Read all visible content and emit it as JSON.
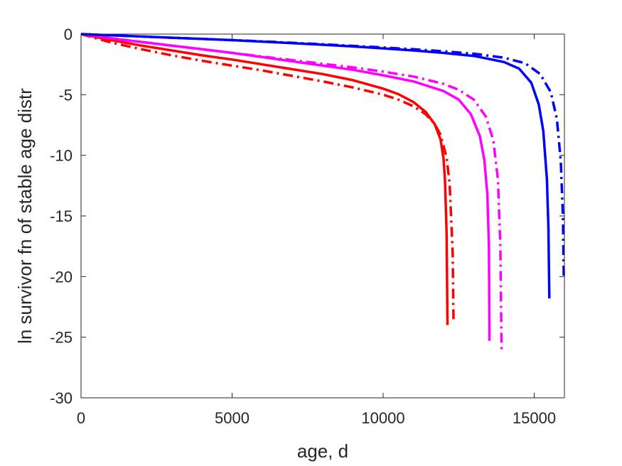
{
  "chart_data": {
    "type": "line",
    "title": "",
    "xlabel": "age, d",
    "ylabel": "ln survivor fn of stable age distr",
    "xlim": [
      0,
      16000
    ],
    "ylim": [
      -30,
      0
    ],
    "xticks": [
      0,
      5000,
      10000,
      15000
    ],
    "yticks": [
      0,
      -5,
      -10,
      -15,
      -20,
      -25,
      -30
    ],
    "xtick_labels": [
      "0",
      "5000",
      "10000",
      "15000"
    ],
    "ytick_labels": [
      "0",
      "-5",
      "-10",
      "-15",
      "-20",
      "-25",
      "-30"
    ],
    "grid": false,
    "box": true,
    "series": [
      {
        "color": "#ff0000",
        "style": "solid",
        "x": [
          0,
          1000,
          2000,
          3000,
          4000,
          5000,
          6000,
          7000,
          8000,
          9000,
          10000,
          10500,
          11000,
          11400,
          11700,
          11900,
          12000,
          12050,
          12100,
          12130
        ],
        "y": [
          0,
          -0.5,
          -0.95,
          -1.35,
          -1.75,
          -2.1,
          -2.5,
          -2.9,
          -3.3,
          -3.8,
          -4.5,
          -4.95,
          -5.6,
          -6.4,
          -7.4,
          -8.7,
          -10.3,
          -12.2,
          -16.5,
          -24
        ]
      },
      {
        "color": "#ff0000",
        "style": "dashdot",
        "x": [
          0,
          1000,
          2000,
          3000,
          4000,
          5000,
          6000,
          7000,
          8000,
          9000,
          10000,
          10500,
          11000,
          11400,
          11700,
          11900,
          12100,
          12200,
          12300,
          12330
        ],
        "y": [
          0,
          -0.7,
          -1.25,
          -1.75,
          -2.2,
          -2.6,
          -3.0,
          -3.45,
          -3.9,
          -4.4,
          -5.0,
          -5.4,
          -5.95,
          -6.6,
          -7.4,
          -8.3,
          -10.2,
          -12.3,
          -18.0,
          -23.7
        ]
      },
      {
        "color": "#ff00ff",
        "style": "solid",
        "x": [
          0,
          1000,
          2000,
          3000,
          4000,
          5000,
          6000,
          7000,
          8000,
          9000,
          10000,
          11000,
          12000,
          12500,
          12900,
          13200,
          13350,
          13450,
          13500,
          13520
        ],
        "y": [
          0,
          -0.35,
          -0.65,
          -0.95,
          -1.25,
          -1.55,
          -1.9,
          -2.25,
          -2.6,
          -2.95,
          -3.4,
          -3.9,
          -4.7,
          -5.4,
          -6.6,
          -8.4,
          -10.4,
          -13.2,
          -17.5,
          -25.3
        ]
      },
      {
        "color": "#ff00ff",
        "style": "dashdot",
        "x": [
          0,
          1000,
          2000,
          3000,
          4000,
          5000,
          6000,
          7000,
          8000,
          9000,
          10000,
          11000,
          12000,
          12500,
          13000,
          13400,
          13650,
          13800,
          13880,
          13920
        ],
        "y": [
          0,
          -0.35,
          -0.65,
          -0.95,
          -1.25,
          -1.55,
          -1.85,
          -2.15,
          -2.45,
          -2.75,
          -3.1,
          -3.5,
          -4.1,
          -4.6,
          -5.4,
          -6.8,
          -8.8,
          -12.0,
          -17.5,
          -26.2
        ]
      },
      {
        "color": "#0000ff",
        "style": "solid",
        "x": [
          0,
          1000,
          2000,
          3000,
          4000,
          5000,
          6000,
          7000,
          8000,
          9000,
          10000,
          11000,
          12000,
          13000,
          14000,
          14500,
          14900,
          15150,
          15300,
          15420,
          15470,
          15500
        ],
        "y": [
          0,
          -0.1,
          -0.2,
          -0.3,
          -0.4,
          -0.5,
          -0.62,
          -0.75,
          -0.88,
          -1.02,
          -1.18,
          -1.35,
          -1.55,
          -1.8,
          -2.3,
          -2.85,
          -4.0,
          -5.8,
          -8.0,
          -12.0,
          -16.0,
          -21.8
        ]
      },
      {
        "color": "#0000ff",
        "style": "dashdot",
        "x": [
          0,
          1000,
          2000,
          3000,
          4000,
          5000,
          6000,
          7000,
          8000,
          9000,
          10000,
          11000,
          12000,
          13000,
          14000,
          14700,
          15200,
          15550,
          15750,
          15880,
          15950,
          15980
        ],
        "y": [
          0,
          -0.1,
          -0.2,
          -0.3,
          -0.4,
          -0.5,
          -0.6,
          -0.72,
          -0.84,
          -0.97,
          -1.1,
          -1.25,
          -1.42,
          -1.62,
          -1.95,
          -2.4,
          -3.3,
          -4.8,
          -7.0,
          -10.5,
          -15.0,
          -20.0
        ]
      }
    ]
  }
}
